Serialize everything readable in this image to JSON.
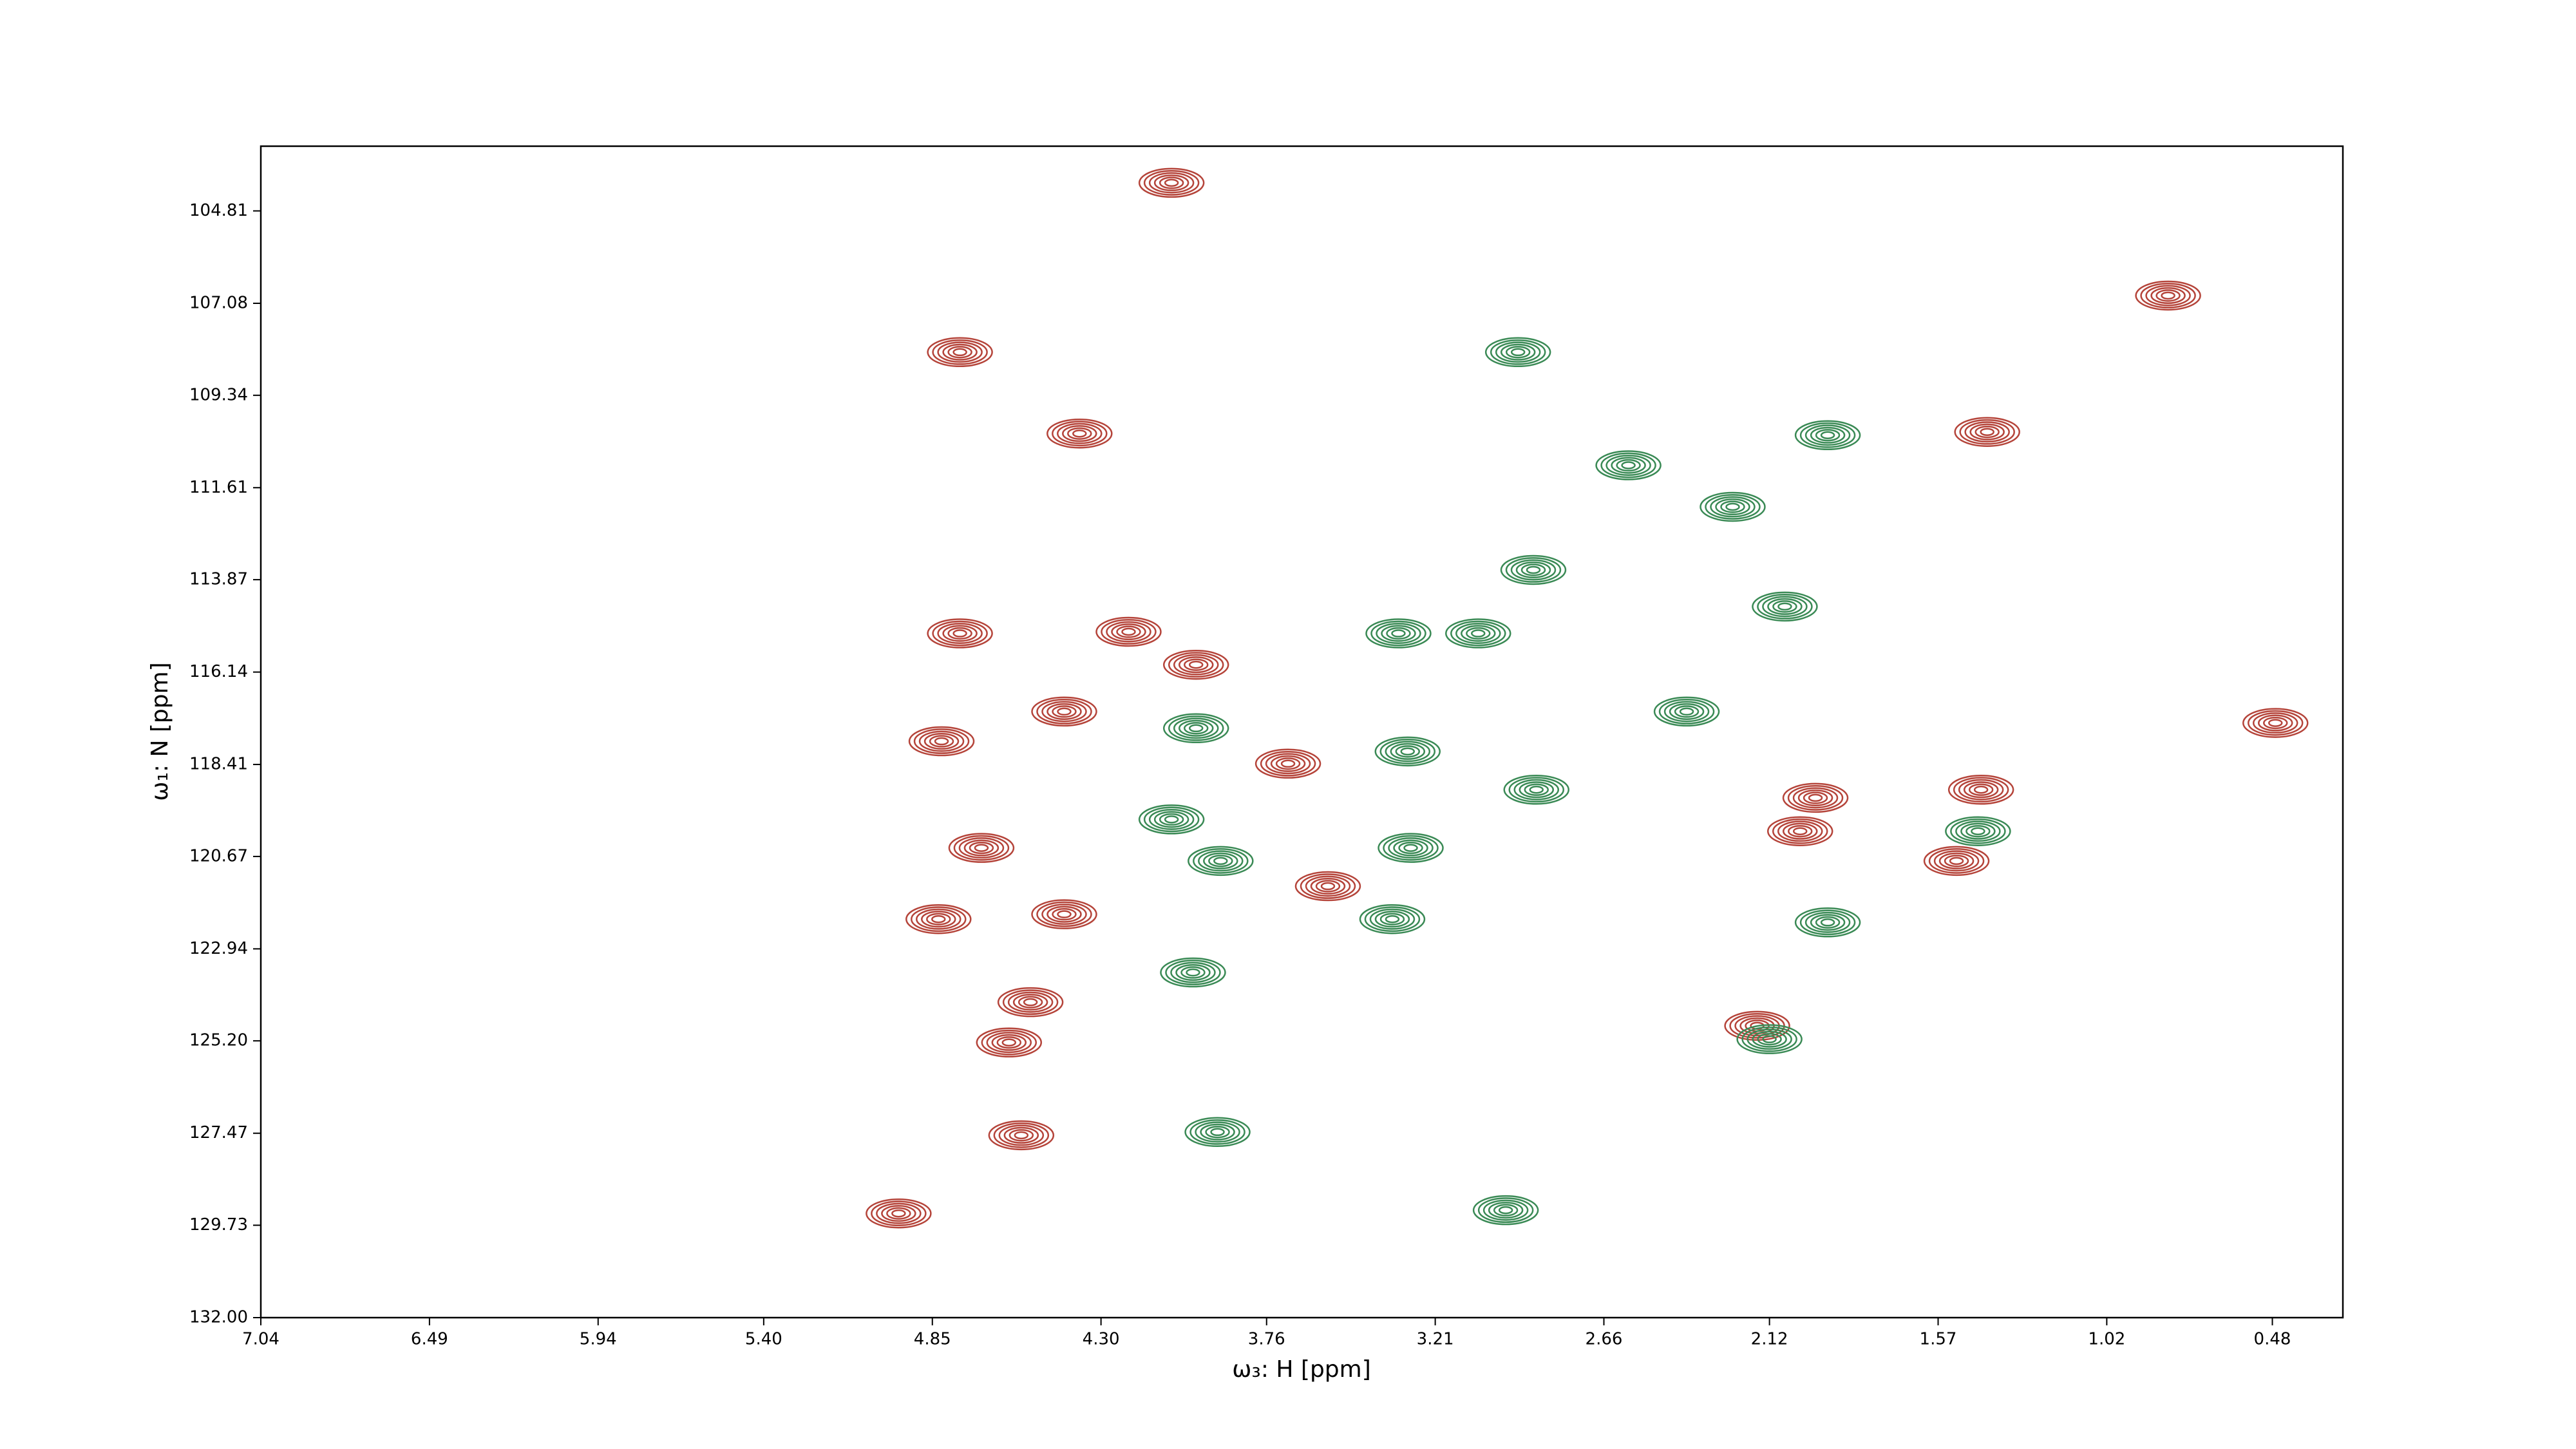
{
  "chart_data": {
    "type": "contour",
    "xlabel": "ω₃: H [ppm]",
    "ylabel": "ω₁: N [ppm]",
    "xlim": [
      7.04,
      0.25
    ],
    "ylim": [
      132.0,
      103.22
    ],
    "xticks": [
      7.04,
      6.49,
      5.94,
      {
        "value": 5.4,
        "label": "5.40"
      },
      4.85,
      {
        "value": 4.3,
        "label": "4.30"
      },
      3.76,
      3.21,
      2.66,
      2.12,
      1.57,
      1.02,
      0.48
    ],
    "yticks": [
      104.81,
      107.08,
      109.34,
      111.61,
      113.87,
      116.14,
      118.41,
      120.67,
      122.94,
      {
        "value": 125.2,
        "label": "125.20"
      },
      127.47,
      129.73,
      {
        "value": 132,
        "label": "132.00"
      }
    ],
    "series": [
      {
        "color": "#b5443a",
        "x": [
          4.76,
          4.37,
          4.07,
          4.76,
          4.42,
          4.82,
          4.69,
          4.83,
          4.42,
          4.53,
          4.6,
          4.56,
          4.96,
          3.69,
          3.56,
          1.97,
          2.02,
          1.51,
          1.43,
          0.47,
          0.82,
          1.41,
          2.16,
          4.21,
          3.99
        ],
        "values": [
          108.28,
          110.28,
          104.12,
          115.19,
          117.11,
          117.84,
          120.46,
          122.21,
          122.09,
          124.25,
          125.24,
          127.52,
          129.44,
          118.39,
          121.4,
          119.23,
          120.05,
          120.78,
          119.03,
          117.39,
          106.89,
          110.24,
          124.83,
          115.15,
          115.96
        ]
      },
      {
        "color": "#3a8a55",
        "x": [
          2.94,
          1.93,
          3.33,
          3.07,
          3.99,
          3.3,
          2.88,
          4.07,
          3.91,
          3.29,
          3.35,
          1.93,
          4.0,
          2.12,
          3.92,
          2.58,
          2.24,
          2.39,
          2.07,
          2.98,
          2.89,
          1.44
        ],
        "values": [
          108.28,
          110.32,
          115.19,
          115.19,
          117.52,
          118.09,
          119.03,
          119.76,
          120.78,
          120.46,
          122.21,
          122.29,
          123.52,
          125.16,
          127.44,
          111.06,
          112.08,
          117.11,
          114.53,
          129.36,
          113.63,
          120.05
        ]
      }
    ]
  }
}
